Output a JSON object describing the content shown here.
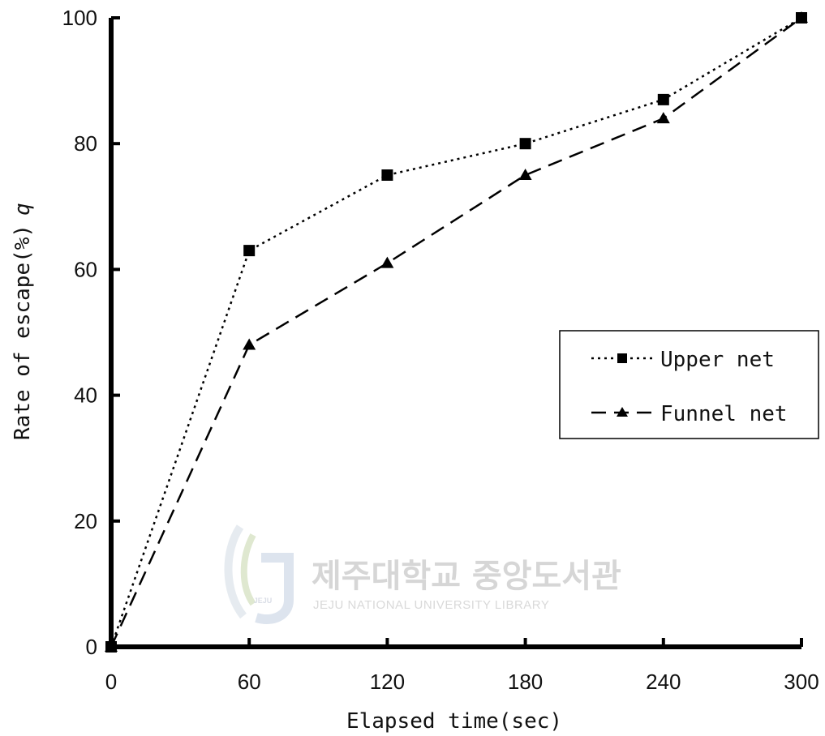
{
  "chart_data": {
    "type": "line",
    "title": "",
    "xlabel": "Elapsed time(sec)",
    "ylabel": "Rate of escape(%)",
    "ylabel_symbol": "q",
    "x": [
      0,
      60,
      120,
      180,
      240,
      300
    ],
    "xlim": [
      0,
      300
    ],
    "ylim": [
      0,
      100
    ],
    "xticks": [
      "0",
      "60",
      "120",
      "180",
      "240",
      "300"
    ],
    "yticks": [
      "0",
      "20",
      "40",
      "60",
      "80",
      "100"
    ],
    "grid": false,
    "legend_position": "right",
    "series": [
      {
        "name": "Upper net",
        "marker": "square",
        "line_style": "dotted",
        "color": "#000000",
        "values": [
          0,
          63,
          75,
          80,
          87,
          100
        ]
      },
      {
        "name": "Funnel net",
        "marker": "triangle",
        "line_style": "dashed",
        "color": "#000000",
        "values": [
          0,
          48,
          61,
          75,
          84,
          100
        ]
      }
    ]
  },
  "watermark": {
    "korean_text": "제주대학교 중앙도서관",
    "english_text": "JEJU NATIONAL UNIVERSITY LIBRARY",
    "logo_text": "JEJU"
  }
}
